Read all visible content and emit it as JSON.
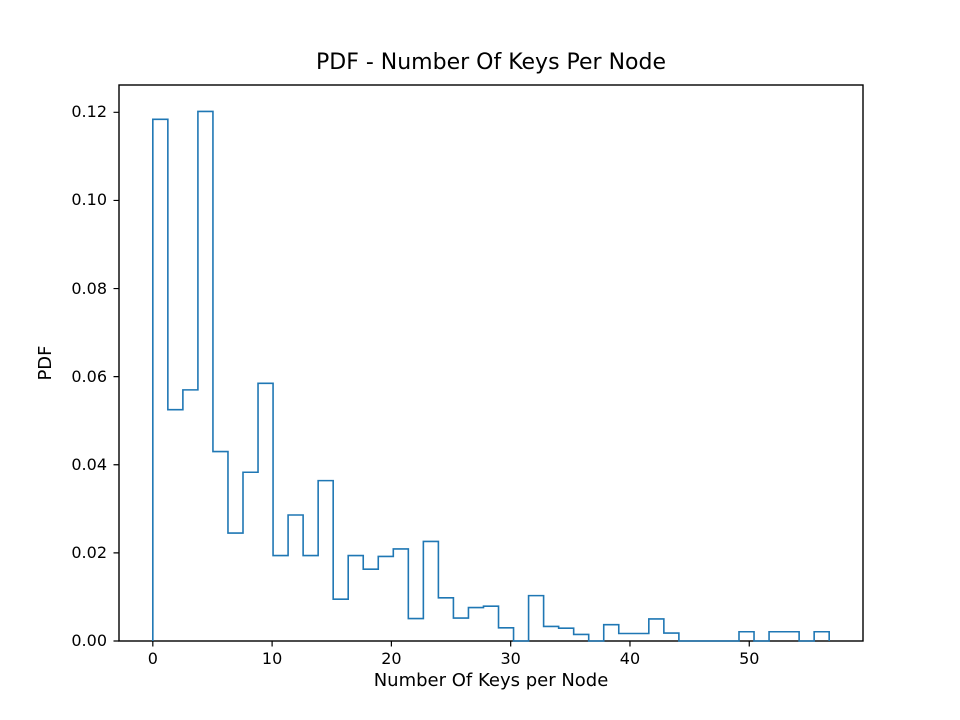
{
  "chart_data": {
    "type": "histogram-step",
    "title": "PDF - Number Of Keys Per Node",
    "xlabel": "Number Of Keys per Node",
    "ylabel": "PDF",
    "bin_start": 0,
    "bin_width": 1.26,
    "bin_heights": [
      0.1184,
      0.0525,
      0.057,
      0.1202,
      0.043,
      0.0245,
      0.0383,
      0.0585,
      0.0194,
      0.0286,
      0.0194,
      0.0364,
      0.0095,
      0.0194,
      0.0163,
      0.0192,
      0.0209,
      0.0051,
      0.0226,
      0.0098,
      0.0052,
      0.0076,
      0.0079,
      0.003,
      0.0,
      0.0103,
      0.0033,
      0.0029,
      0.0015,
      0.0,
      0.0037,
      0.0017,
      0.0017,
      0.005,
      0.0018,
      0.0,
      0.0,
      0.0,
      0.0,
      0.0021,
      0.0,
      0.0021,
      0.0021,
      0.0,
      0.0021
    ],
    "xlim": [
      -2.835,
      59.535
    ],
    "ylim": [
      0,
      0.1262
    ],
    "xticks": [
      0,
      10,
      20,
      30,
      40,
      50
    ],
    "xtick_labels": [
      "0",
      "10",
      "20",
      "30",
      "40",
      "50"
    ],
    "yticks": [
      0,
      0.02,
      0.04,
      0.06,
      0.08,
      0.1,
      0.12
    ],
    "ytick_labels": [
      "0.00",
      "0.02",
      "0.04",
      "0.06",
      "0.08",
      "0.10",
      "0.12"
    ],
    "line_color": "#1f77b4",
    "axis_color": "#000000",
    "background_color": "#ffffff",
    "grid": false,
    "legend": "none"
  }
}
